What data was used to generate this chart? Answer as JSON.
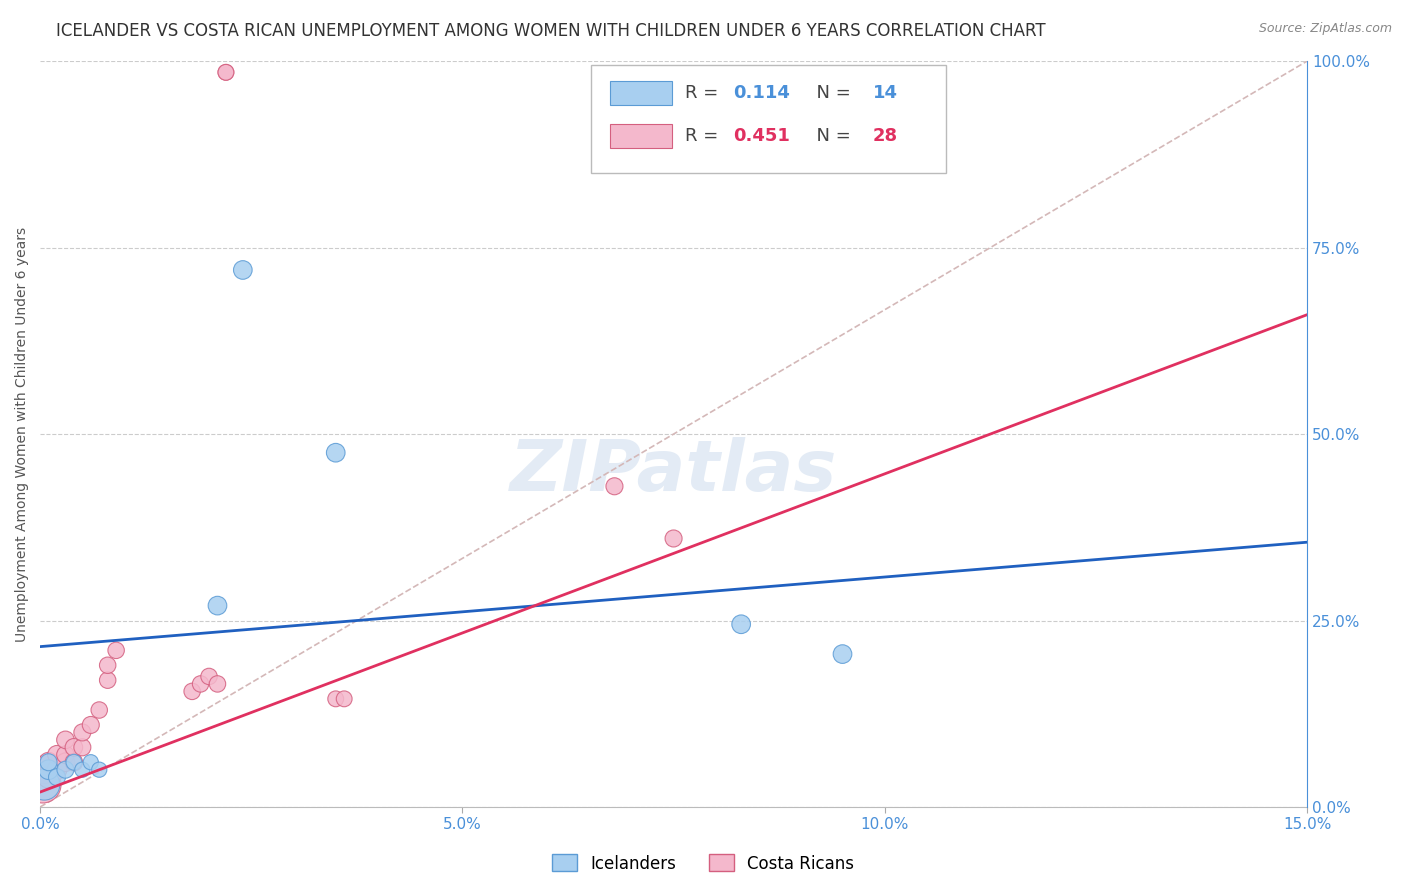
{
  "title": "ICELANDER VS COSTA RICAN UNEMPLOYMENT AMONG WOMEN WITH CHILDREN UNDER 6 YEARS CORRELATION CHART",
  "source": "Source: ZipAtlas.com",
  "ylabel": "Unemployment Among Women with Children Under 6 years",
  "xlim": [
    0.0,
    0.15
  ],
  "ylim": [
    0.0,
    1.0
  ],
  "xticks": [
    0.0,
    0.05,
    0.1,
    0.15
  ],
  "xtick_labels": [
    "0.0%",
    "5.0%",
    "10.0%",
    "15.0%"
  ],
  "yticks_right": [
    0.0,
    0.25,
    0.5,
    0.75,
    1.0
  ],
  "ytick_labels_right": [
    "0.0%",
    "25.0%",
    "50.0%",
    "75.0%",
    "100.0%"
  ],
  "grid_color": "#cccccc",
  "background_color": "#ffffff",
  "watermark": "ZIPatlas",
  "icelanders": {
    "x": [
      0.0005,
      0.001,
      0.001,
      0.002,
      0.003,
      0.004,
      0.005,
      0.006,
      0.007,
      0.021,
      0.024,
      0.035,
      0.083,
      0.095
    ],
    "y": [
      0.03,
      0.05,
      0.06,
      0.04,
      0.05,
      0.06,
      0.05,
      0.06,
      0.05,
      0.27,
      0.72,
      0.475,
      0.245,
      0.205
    ],
    "sizes": [
      500,
      200,
      150,
      150,
      150,
      130,
      120,
      120,
      120,
      180,
      180,
      180,
      180,
      180
    ],
    "color": "#a8cff0",
    "border_color": "#5b9bd5",
    "R": 0.114,
    "N": 14,
    "trend_color": "#2060c0",
    "trend_x": [
      0.0,
      0.15
    ],
    "trend_y": [
      0.215,
      0.355
    ]
  },
  "costa_ricans": {
    "x": [
      0.0003,
      0.0005,
      0.001,
      0.001,
      0.002,
      0.002,
      0.003,
      0.003,
      0.003,
      0.004,
      0.004,
      0.005,
      0.005,
      0.006,
      0.007,
      0.008,
      0.008,
      0.009,
      0.018,
      0.019,
      0.02,
      0.021,
      0.022,
      0.022,
      0.035,
      0.036,
      0.068,
      0.075
    ],
    "y": [
      0.03,
      0.05,
      0.04,
      0.06,
      0.05,
      0.07,
      0.06,
      0.07,
      0.09,
      0.06,
      0.08,
      0.08,
      0.1,
      0.11,
      0.13,
      0.17,
      0.19,
      0.21,
      0.155,
      0.165,
      0.175,
      0.165,
      0.985,
      0.985,
      0.145,
      0.145,
      0.43,
      0.36
    ],
    "sizes": [
      700,
      400,
      250,
      200,
      200,
      180,
      180,
      160,
      160,
      160,
      160,
      150,
      150,
      150,
      140,
      140,
      140,
      140,
      140,
      140,
      140,
      140,
      130,
      130,
      130,
      130,
      150,
      150
    ],
    "color": "#f4b8cc",
    "border_color": "#d45f7f",
    "R": 0.451,
    "N": 28,
    "trend_color": "#e03060",
    "trend_x": [
      0.0,
      0.15
    ],
    "trend_y": [
      0.02,
      0.66
    ]
  },
  "diagonal_line": {
    "x": [
      0.0,
      0.15
    ],
    "y": [
      0.0,
      1.0
    ],
    "color": "#d4b8b8",
    "style": "--",
    "linewidth": 1.2
  },
  "title_fontsize": 12,
  "axis_label_fontsize": 10,
  "tick_fontsize": 11,
  "axis_color": "#4a90d9",
  "watermark_color": "#c8d8ec",
  "watermark_alpha": 0.5
}
